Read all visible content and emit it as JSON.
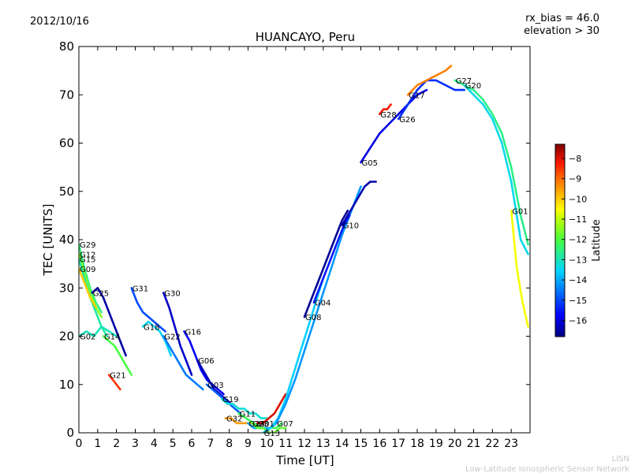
{
  "header": {
    "date": "2012/10/16",
    "rx_bias": "rx_bias = 46.0",
    "elevation": "elevation > 30"
  },
  "credit": {
    "line1": "LISN",
    "line2": "Low-Latitude Ionospheric Sensor Network"
  },
  "chart_data": {
    "type": "line",
    "title": "HUANCAYO, Peru",
    "xlabel": "Time [UT]",
    "ylabel": "TEC [UNITS]",
    "xlim": [
      0,
      24
    ],
    "ylim": [
      0,
      80
    ],
    "xticks": [
      0,
      1,
      2,
      3,
      4,
      5,
      6,
      7,
      8,
      9,
      10,
      11,
      12,
      13,
      14,
      15,
      16,
      17,
      18,
      19,
      20,
      21,
      22,
      23
    ],
    "yticks": [
      0,
      10,
      20,
      30,
      40,
      50,
      60,
      70,
      80
    ],
    "grid": false,
    "colorbar": {
      "label": "Latitude",
      "range": [
        -16.8,
        -7.3
      ],
      "ticks": [
        -8,
        -9,
        -10,
        -11,
        -12,
        -13,
        -14,
        -15,
        -16
      ],
      "colors": [
        "#00007f",
        "#0000ff",
        "#007fff",
        "#00ffff",
        "#7fff7f",
        "#ffff00",
        "#ff7f00",
        "#ff0000",
        "#7f0000"
      ]
    },
    "series": [
      {
        "name": "G29",
        "lat": -12.5,
        "x": [
          0.0,
          0.3,
          0.6,
          0.9,
          1.2
        ],
        "y": [
          39,
          34,
          30,
          27,
          25
        ]
      },
      {
        "name": "G12",
        "lat": -11.5,
        "x": [
          0.0,
          0.3,
          0.6,
          0.9,
          1.2
        ],
        "y": [
          37,
          33,
          29,
          26,
          24
        ]
      },
      {
        "name": "G15",
        "lat": -12.8,
        "x": [
          0.0,
          0.3,
          0.6,
          0.9,
          1.2,
          1.5
        ],
        "y": [
          36,
          32,
          28,
          25,
          22,
          20
        ]
      },
      {
        "name": "G09",
        "lat": -10.0,
        "x": [
          0.0,
          0.3,
          0.6,
          0.9
        ],
        "y": [
          34,
          31,
          28,
          26
        ]
      },
      {
        "name": "G02",
        "lat": -13.0,
        "x": [
          0.0,
          0.4,
          0.8,
          1.2,
          1.6,
          2.0
        ],
        "y": [
          20,
          21,
          20,
          22,
          21,
          20
        ]
      },
      {
        "name": "G25",
        "lat": -16.5,
        "x": [
          0.7,
          1.0,
          1.3,
          1.6,
          1.9,
          2.2,
          2.5
        ],
        "y": [
          29,
          30,
          28,
          25,
          22,
          19,
          16
        ]
      },
      {
        "name": "G14",
        "lat": -12.0,
        "x": [
          1.3,
          1.6,
          1.9,
          2.2,
          2.5,
          2.8
        ],
        "y": [
          20,
          19,
          18,
          16,
          14,
          12
        ]
      },
      {
        "name": "G21",
        "lat": -8.5,
        "x": [
          1.6,
          1.8,
          2.0,
          2.2
        ],
        "y": [
          12,
          11,
          10,
          9
        ]
      },
      {
        "name": "G31",
        "lat": -15.0,
        "x": [
          2.8,
          3.1,
          3.4,
          3.7,
          4.0,
          4.3,
          4.6
        ],
        "y": [
          30,
          27,
          25,
          24,
          23,
          22,
          21
        ]
      },
      {
        "name": "G18",
        "lat": -13.5,
        "x": [
          3.4,
          3.7,
          4.0,
          4.3,
          4.6,
          4.9
        ],
        "y": [
          22,
          23,
          22,
          21,
          19,
          16
        ]
      },
      {
        "name": "G30",
        "lat": -16.2,
        "x": [
          4.5,
          4.8,
          5.1,
          5.4,
          5.7,
          6.0
        ],
        "y": [
          29,
          26,
          22,
          18,
          15,
          12
        ]
      },
      {
        "name": "G22",
        "lat": -14.5,
        "x": [
          4.5,
          4.8,
          5.1,
          5.4,
          5.7,
          6.0,
          6.3,
          6.6
        ],
        "y": [
          20,
          18,
          16,
          14,
          12,
          11,
          10,
          9
        ]
      },
      {
        "name": "G16",
        "lat": -15.8,
        "x": [
          5.6,
          5.9,
          6.2,
          6.5,
          6.8,
          7.1,
          7.4,
          7.7
        ],
        "y": [
          21,
          19,
          16,
          13,
          11,
          10,
          9,
          8
        ]
      },
      {
        "name": "G06",
        "lat": -16.3,
        "x": [
          6.3,
          6.6,
          6.9,
          7.2,
          7.5,
          7.8,
          8.1
        ],
        "y": [
          15,
          13,
          11,
          9,
          8,
          7,
          6
        ]
      },
      {
        "name": "G03",
        "lat": -14.8,
        "x": [
          6.8,
          7.1,
          7.4,
          7.7,
          8.0,
          8.3,
          8.6
        ],
        "y": [
          10,
          9,
          8,
          7,
          6,
          5,
          4
        ]
      },
      {
        "name": "G19",
        "lat": -13.2,
        "x": [
          7.6,
          7.9,
          8.2,
          8.5,
          8.8,
          9.1,
          9.4,
          9.7,
          10.0
        ],
        "y": [
          7,
          6,
          6,
          5,
          5,
          4,
          4,
          3,
          3
        ]
      },
      {
        "name": "G32",
        "lat": -9.5,
        "x": [
          7.8,
          8.1,
          8.4,
          8.7,
          9.0,
          9.3,
          9.6,
          9.9
        ],
        "y": [
          3,
          3,
          2,
          2,
          2,
          2,
          1,
          1
        ]
      },
      {
        "name": "G11",
        "lat": -12.2,
        "x": [
          8.5,
          8.9,
          9.3,
          9.7,
          10.1,
          10.5,
          10.8
        ],
        "y": [
          4,
          3,
          2,
          1,
          1,
          1,
          2
        ]
      },
      {
        "name": "G01",
        "lat": -8.0,
        "x": [
          9.5,
          9.8,
          10.1,
          10.4,
          10.7,
          11.0
        ],
        "y": [
          2,
          2,
          3,
          4,
          6,
          8
        ]
      },
      {
        "name": "G24",
        "lat": -14.0,
        "x": [
          9.0,
          9.3,
          9.6,
          9.9,
          10.2,
          10.5
        ],
        "y": [
          2,
          1,
          1,
          1,
          1,
          2
        ]
      },
      {
        "name": "G23",
        "lat": -11.8,
        "x": [
          9.2,
          9.5,
          9.8,
          10.1,
          10.4,
          10.7,
          11.0
        ],
        "y": [
          2,
          1,
          1,
          0,
          0,
          1,
          1
        ]
      },
      {
        "name": "G13",
        "lat": -13.6,
        "x": [
          9.8,
          10.2,
          10.6,
          11.0,
          11.4,
          11.8,
          12.2,
          12.6,
          13.0
        ],
        "y": [
          0,
          1,
          3,
          7,
          12,
          17,
          22,
          27,
          32
        ]
      },
      {
        "name": "G07",
        "lat": -14.2,
        "x": [
          10.5,
          11.0,
          11.5,
          12.0,
          12.5,
          13.0,
          13.5,
          14.0,
          14.5,
          15.0
        ],
        "y": [
          2,
          6,
          11,
          17,
          23,
          29,
          35,
          41,
          46,
          51
        ]
      },
      {
        "name": "G08",
        "lat": -16.6,
        "x": [
          12.0,
          12.4,
          12.8,
          13.2,
          13.6,
          14.0,
          14.3
        ],
        "y": [
          24,
          28,
          32,
          36,
          40,
          44,
          46
        ]
      },
      {
        "name": "G04",
        "lat": -15.5,
        "x": [
          12.5,
          12.9,
          13.3,
          13.7,
          14.1,
          14.4
        ],
        "y": [
          27,
          31,
          35,
          39,
          43,
          45
        ]
      },
      {
        "name": "G10",
        "lat": -16.4,
        "x": [
          14.0,
          14.3,
          14.6,
          14.9,
          15.2,
          15.5,
          15.8
        ],
        "y": [
          43,
          45,
          47,
          49,
          51,
          52,
          52
        ]
      },
      {
        "name": "G28",
        "lat": -8.2,
        "x": [
          16.0,
          16.2,
          16.4,
          16.6
        ],
        "y": [
          66,
          67,
          67,
          68
        ]
      },
      {
        "name": "G05",
        "lat": -16.0,
        "x": [
          15.0,
          15.5,
          16.0,
          16.5,
          17.0,
          17.5,
          18.0,
          18.5
        ],
        "y": [
          56,
          59,
          62,
          64,
          66,
          68,
          70,
          71
        ]
      },
      {
        "name": "G26",
        "lat": -15.3,
        "x": [
          17.0,
          17.5,
          18.0,
          18.5,
          19.0,
          19.5,
          20.0,
          20.5
        ],
        "y": [
          65,
          68,
          71,
          73,
          73,
          72,
          71,
          71
        ]
      },
      {
        "name": "G17",
        "lat": -9.2,
        "x": [
          17.5,
          18.0,
          18.5,
          19.0,
          19.5,
          19.8
        ],
        "y": [
          70,
          72,
          73,
          74,
          75,
          76
        ]
      },
      {
        "name": "G27",
        "lat": -12.6,
        "x": [
          20.0,
          20.5,
          21.0,
          21.5,
          22.0,
          22.5,
          23.0,
          23.5,
          23.9
        ],
        "y": [
          73,
          72,
          71,
          69,
          66,
          62,
          55,
          45,
          39
        ]
      },
      {
        "name": "G20",
        "lat": -13.4,
        "x": [
          20.5,
          21.0,
          21.5,
          22.0,
          22.5,
          23.0,
          23.5,
          23.9
        ],
        "y": [
          72,
          70,
          68,
          65,
          60,
          52,
          40,
          37
        ]
      },
      {
        "name": "G01",
        "lat": -10.6,
        "x": [
          23.0,
          23.3,
          23.6,
          23.9
        ],
        "y": [
          46,
          34,
          27,
          22
        ]
      }
    ]
  }
}
